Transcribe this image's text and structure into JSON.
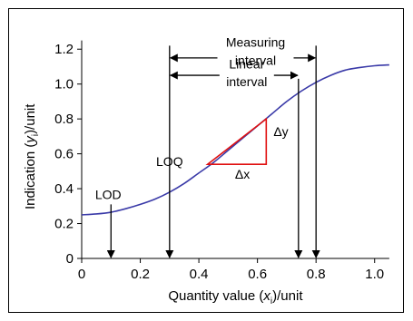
{
  "chart_data": {
    "type": "line",
    "xlabel_parts": [
      "Quantity value (",
      "x",
      "i",
      ")/unit"
    ],
    "ylabel_parts": [
      "Indication (",
      "y",
      "i",
      ")/unit"
    ],
    "xlim": [
      0,
      1.1
    ],
    "ylim": [
      0,
      1.3
    ],
    "xticks": [
      0,
      0.2,
      0.4,
      0.6,
      0.8,
      1.0
    ],
    "xtick_labels": [
      "0",
      "0.2",
      "0.4",
      "0.6",
      "0.8",
      "1.0"
    ],
    "yticks": [
      0,
      0.2,
      0.4,
      0.6,
      0.8,
      1.0,
      1.2
    ],
    "ytick_labels": [
      "0",
      "0.2",
      "0.4",
      "0.6",
      "0.8",
      "1.0",
      "1.2"
    ],
    "series": [
      {
        "color": "#3a3aa8",
        "x": [
          0,
          0.05,
          0.1,
          0.15,
          0.2,
          0.25,
          0.3,
          0.35,
          0.4,
          0.45,
          0.5,
          0.55,
          0.6,
          0.65,
          0.7,
          0.75,
          0.8,
          0.85,
          0.9,
          0.95,
          1.0,
          1.05
        ],
        "y": [
          0.25,
          0.255,
          0.265,
          0.285,
          0.31,
          0.34,
          0.38,
          0.43,
          0.49,
          0.55,
          0.62,
          0.69,
          0.76,
          0.83,
          0.9,
          0.96,
          1.01,
          1.05,
          1.08,
          1.095,
          1.105,
          1.11
        ]
      }
    ],
    "markers": [
      {
        "label": "LOD",
        "x": 0.1
      },
      {
        "label": "LOQ",
        "x": 0.3
      },
      {
        "label": "",
        "x": 0.74
      },
      {
        "label": "",
        "x": 0.8
      }
    ],
    "intervals": [
      {
        "label_lines": [
          "Measuring",
          "interval"
        ],
        "x_from": 0.3,
        "x_to": 0.8
      },
      {
        "label_lines": [
          "Linear",
          "interval"
        ],
        "x_from": 0.3,
        "x_to": 0.74
      }
    ],
    "slope_triangle": {
      "color": "#e01010",
      "x0": 0.43,
      "x1": 0.63,
      "y0": 0.54,
      "y1": 0.8,
      "dx_label": "Δx",
      "dy_label": "Δy"
    }
  }
}
